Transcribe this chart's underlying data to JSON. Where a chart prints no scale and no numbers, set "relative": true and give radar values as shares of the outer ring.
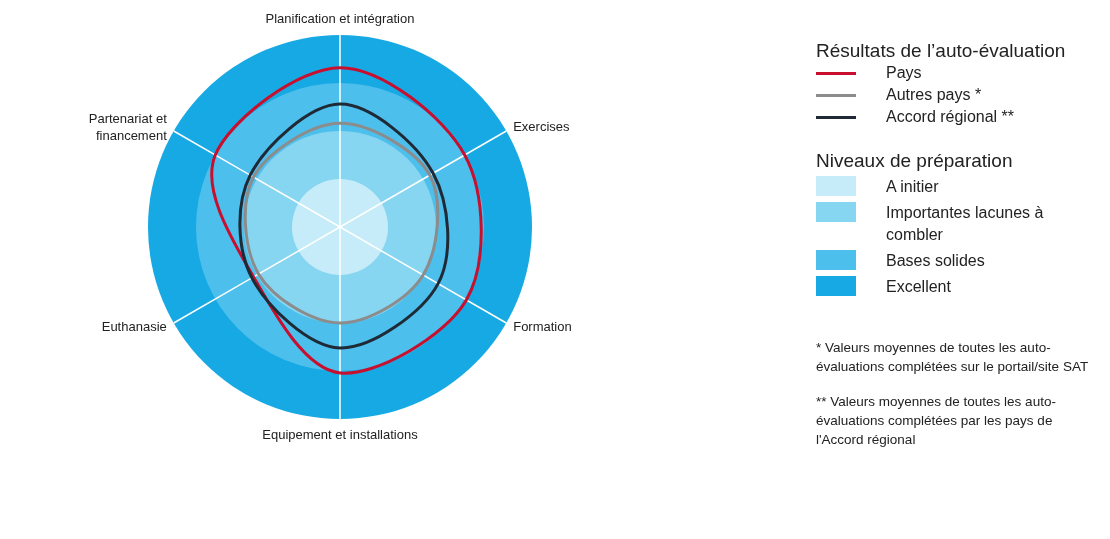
{
  "chart_data": {
    "type": "radar",
    "relative": true,
    "categories": [
      "Planification et intégration",
      "Exercises",
      "Formation",
      "Equipement et installations",
      "Euthanasie",
      "Partenariat et financement"
    ],
    "series": [
      {
        "name": "Pays",
        "color": "#c8102e",
        "values": [
          0.83,
          0.75,
          0.76,
          0.76,
          0.52,
          0.75
        ]
      },
      {
        "name": "Autres pays *",
        "color": "#8c8c8c",
        "values": [
          0.54,
          0.54,
          0.5,
          0.5,
          0.49,
          0.52
        ]
      },
      {
        "name": "Accord régional **",
        "color": "#1f2a36",
        "values": [
          0.64,
          0.56,
          0.59,
          0.63,
          0.53,
          0.54
        ]
      }
    ],
    "legend": "right",
    "legend_title": "Résultats de l’auto-évaluation",
    "annotations": [
      "Niveaux de préparation",
      "A initier",
      "Importantes lacunes à combler",
      "Bases solides",
      "Excellent",
      "* Valeurs moyennes de toutes les auto-évaluations complétées sur le portail/site SAT",
      "** Valeurs moyennes de toutes les auto-évaluations complétées par les pays de l'Accord régional"
    ]
  }
}
